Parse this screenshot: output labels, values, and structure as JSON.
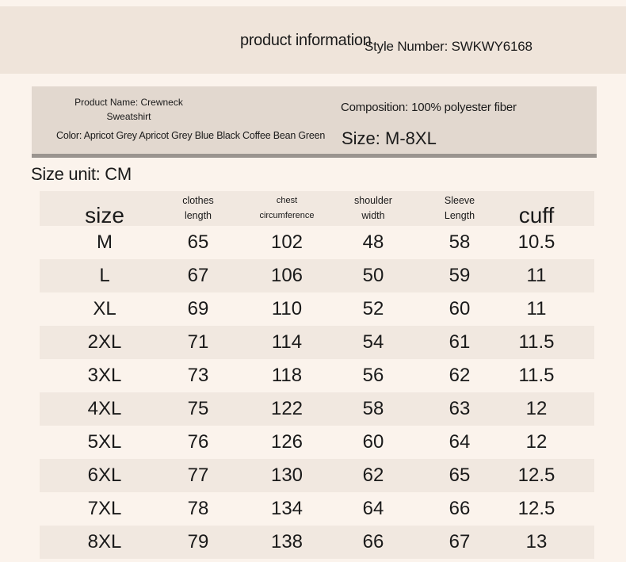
{
  "header": {
    "title": "product information",
    "style_number": "Style Number: SWKWY6168"
  },
  "info": {
    "product_name": "Product Name: Crewneck Sweatshirt",
    "color": "Color: Apricot Grey Apricot Grey Blue Black Coffee Bean Green",
    "composition": "Composition: 100% polyester fiber",
    "size_range": "Size: M-8XL"
  },
  "size_unit": "Size unit: CM",
  "table": {
    "headers": [
      {
        "line1": "size",
        "line2": ""
      },
      {
        "line1": "clothes",
        "line2": "length"
      },
      {
        "line1": "chest",
        "line2": "circumference"
      },
      {
        "line1": "shoulder",
        "line2": "width"
      },
      {
        "line1": "Sleeve",
        "line2": "Length"
      },
      {
        "line1": "cuff",
        "line2": ""
      }
    ],
    "rows": [
      [
        "M",
        "65",
        "102",
        "48",
        "58",
        "10.5"
      ],
      [
        "L",
        "67",
        "106",
        "50",
        "59",
        "11"
      ],
      [
        "XL",
        "69",
        "110",
        "52",
        "60",
        "11"
      ],
      [
        "2XL",
        "71",
        "114",
        "54",
        "61",
        "11.5"
      ],
      [
        "3XL",
        "73",
        "118",
        "56",
        "62",
        "11.5"
      ],
      [
        "4XL",
        "75",
        "122",
        "58",
        "63",
        "12"
      ],
      [
        "5XL",
        "76",
        "126",
        "60",
        "64",
        "12"
      ],
      [
        "6XL",
        "77",
        "130",
        "62",
        "65",
        "12.5"
      ],
      [
        "7XL",
        "78",
        "134",
        "64",
        "66",
        "12.5"
      ],
      [
        "8XL",
        "79",
        "138",
        "66",
        "67",
        "13"
      ]
    ]
  }
}
